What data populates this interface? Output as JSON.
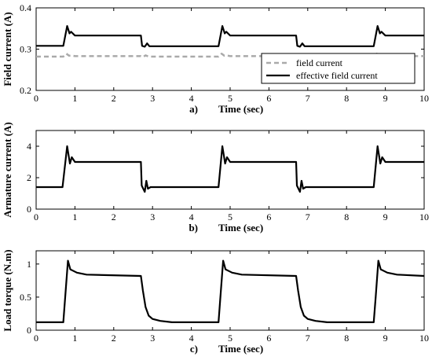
{
  "chart_data": [
    {
      "type": "line",
      "panel_label": "a)",
      "xlabel": "Time (sec)",
      "ylabel": "Field current (A)",
      "xlim": [
        0,
        10
      ],
      "ylim": [
        0.2,
        0.4
      ],
      "xticks": [
        "0",
        "1",
        "2",
        "3",
        "4",
        "5",
        "6",
        "7",
        "8",
        "9",
        "10"
      ],
      "yticks": [
        "0.2",
        "0.3",
        "0.4"
      ],
      "grid": false,
      "legend_position": "bottom-right",
      "series": [
        {
          "name": "field current",
          "color": "#aaaaaa",
          "style": "dashed",
          "x": [
            0,
            0.7,
            0.78,
            0.85,
            0.9,
            1.0,
            2.7,
            2.75,
            2.82,
            2.9,
            3.0,
            4.7,
            4.78,
            4.85,
            4.9,
            5.0,
            6.7,
            6.75,
            6.82,
            6.9,
            7.0,
            8.7,
            8.78,
            8.85,
            8.9,
            9.0,
            10
          ],
          "y": [
            0.282,
            0.282,
            0.289,
            0.284,
            0.285,
            0.283,
            0.283,
            0.281,
            0.285,
            0.282,
            0.282,
            0.282,
            0.289,
            0.284,
            0.285,
            0.283,
            0.283,
            0.281,
            0.285,
            0.282,
            0.282,
            0.282,
            0.289,
            0.284,
            0.285,
            0.283,
            0.283
          ]
        },
        {
          "name": "effective field current",
          "color": "#000000",
          "style": "solid",
          "x": [
            0,
            0.7,
            0.8,
            0.86,
            0.9,
            1.0,
            2.7,
            2.73,
            2.8,
            2.86,
            2.92,
            3.0,
            4.7,
            4.8,
            4.86,
            4.9,
            5.0,
            6.7,
            6.73,
            6.8,
            6.86,
            6.92,
            7.0,
            8.7,
            8.8,
            8.86,
            8.9,
            9.0,
            10
          ],
          "y": [
            0.308,
            0.308,
            0.356,
            0.338,
            0.342,
            0.333,
            0.333,
            0.308,
            0.306,
            0.314,
            0.307,
            0.307,
            0.307,
            0.356,
            0.338,
            0.342,
            0.333,
            0.333,
            0.308,
            0.306,
            0.314,
            0.307,
            0.307,
            0.307,
            0.356,
            0.338,
            0.342,
            0.333,
            0.333
          ]
        }
      ]
    },
    {
      "type": "line",
      "panel_label": "b)",
      "xlabel": "Time (sec)",
      "ylabel": "Armature current (A)",
      "xlim": [
        0,
        10
      ],
      "ylim": [
        0,
        5
      ],
      "xticks": [
        "0",
        "1",
        "2",
        "3",
        "4",
        "5",
        "6",
        "7",
        "8",
        "9",
        "10"
      ],
      "yticks": [
        "0",
        "2",
        "4"
      ],
      "grid": false,
      "series": [
        {
          "color": "#000000",
          "style": "solid",
          "x": [
            0,
            0.68,
            0.8,
            0.87,
            0.92,
            1.0,
            2.7,
            2.72,
            2.8,
            2.84,
            2.88,
            2.95,
            3.0,
            4.7,
            4.8,
            4.87,
            4.92,
            5.0,
            6.7,
            6.72,
            6.8,
            6.84,
            6.88,
            6.95,
            7.0,
            8.7,
            8.8,
            8.87,
            8.92,
            9.0,
            10
          ],
          "y": [
            1.4,
            1.4,
            4.0,
            2.9,
            3.3,
            3.0,
            3.0,
            1.5,
            1.1,
            1.8,
            1.3,
            1.4,
            1.4,
            1.4,
            4.0,
            2.9,
            3.3,
            3.0,
            3.0,
            1.5,
            1.1,
            1.8,
            1.3,
            1.4,
            1.4,
            1.4,
            4.0,
            2.9,
            3.3,
            3.0,
            3.0
          ]
        }
      ]
    },
    {
      "type": "line",
      "panel_label": "c)",
      "xlabel": "Time (sec)",
      "ylabel": "Load torque (N.m)",
      "xlim": [
        0,
        10
      ],
      "ylim": [
        0,
        1.2
      ],
      "xticks": [
        "0",
        "1",
        "2",
        "3",
        "4",
        "5",
        "6",
        "7",
        "8",
        "9",
        "10"
      ],
      "yticks": [
        "0",
        "0.5",
        "1"
      ],
      "grid": false,
      "series": [
        {
          "color": "#000000",
          "style": "solid",
          "x": [
            0,
            0.7,
            0.75,
            0.82,
            0.88,
            0.95,
            1.05,
            1.3,
            2.7,
            2.75,
            2.82,
            2.9,
            3.0,
            3.2,
            3.5,
            4.7,
            4.75,
            4.82,
            4.88,
            4.95,
            5.05,
            5.3,
            6.7,
            6.75,
            6.82,
            6.9,
            7.0,
            7.2,
            7.5,
            8.7,
            8.75,
            8.82,
            8.88,
            8.95,
            9.05,
            9.3,
            10
          ],
          "y": [
            0.12,
            0.12,
            0.5,
            1.05,
            0.92,
            0.9,
            0.87,
            0.84,
            0.82,
            0.6,
            0.35,
            0.22,
            0.17,
            0.14,
            0.12,
            0.12,
            0.5,
            1.05,
            0.92,
            0.9,
            0.87,
            0.84,
            0.82,
            0.6,
            0.35,
            0.22,
            0.17,
            0.14,
            0.12,
            0.12,
            0.5,
            1.05,
            0.92,
            0.9,
            0.87,
            0.84,
            0.82
          ]
        }
      ]
    }
  ]
}
